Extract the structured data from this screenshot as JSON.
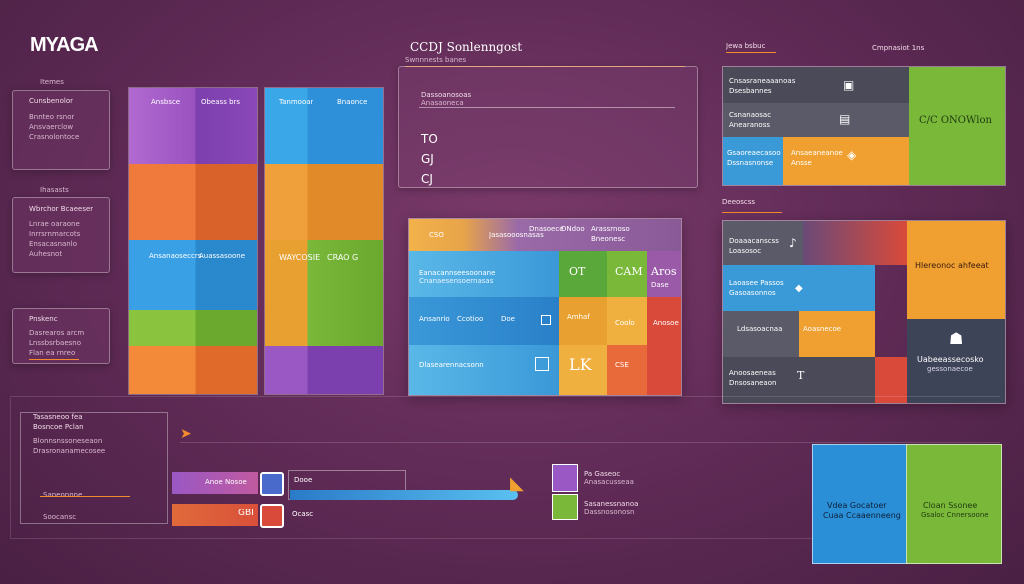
{
  "header": {
    "logo": "MYAGA",
    "title": "CCDJ Sonlenngost",
    "subtitle": "Swnnnests banes",
    "right_label_1": "Jewa bsbuc",
    "right_label_2": "Cmpnasiot 1ns"
  },
  "left_sidebar": {
    "label_top": "Itemes",
    "card1": {
      "title": "Cunsbenolor",
      "lines": [
        "Bnnteo rsnor",
        "Ansvaerclow",
        "Crasnolontoce"
      ]
    },
    "label_mid": "Ihasasts",
    "card2": {
      "title": "Wbrchor Bcaeeser",
      "lines": [
        "Lnrae oaraone",
        "Inrrsrnmarcots",
        "Ensacasnanlo",
        "Auhesnot"
      ]
    },
    "card3": {
      "title": "Pnskenc",
      "lines": [
        "Dasrearos arcm",
        "Lnssbsrbaesno",
        "Flan ea rnreo"
      ]
    }
  },
  "columns": {
    "col1": {
      "h1": "Ansbsce",
      "h2": "Obeass brs",
      "mid1": "Ansanaoseccrs",
      "mid2": "Auassasoone"
    },
    "col2": {
      "h1": "Tanmooar",
      "h2": "Bnaonce",
      "mid1": "WAYCOSIE",
      "mid2": "CRAO G"
    }
  },
  "center_top": {
    "line1": "Dassoanosoas",
    "line2": "Anasaoneca",
    "icon_glyphs": [
      "TO",
      "GJ",
      "CJ"
    ]
  },
  "grid": {
    "header": {
      "c1": "CSO",
      "c2": "Jasasooosnasas",
      "c3": "Dnasoece",
      "c4": "DNdoo",
      "c5": "Arassrnoso",
      "c6": "Bneonesc"
    },
    "row1": {
      "text": "Eanacannseesoonane",
      "sub": "Cnanaesensoernasas",
      "c1": "OT",
      "c2": "CAM",
      "c3": "Aros",
      "c4": "Dase"
    },
    "row2": {
      "text": "Ansanrio",
      "c1": "Ccotioo",
      "c2": "Doe",
      "c3": "Amhaf",
      "c4": "Coolo",
      "c5": "Anosoe"
    },
    "row3": {
      "text": "Dlasearennacsonn",
      "c1": "LK",
      "c2": "CSE"
    }
  },
  "right_top": {
    "rows": [
      {
        "a": "Cnsasraneaaanoas",
        "b": "Dsesbannes"
      },
      {
        "a": "Csnanaosac",
        "b": "Anearanoss"
      },
      {
        "a": "Gsaoreaecasoo",
        "b": "Dssnasnonse",
        "c": "Ansaeaneanoe",
        "d": "Ansse"
      }
    ],
    "big": "C/C ONOWlon"
  },
  "right_mid": {
    "label": "Deeoscss",
    "rows": [
      {
        "a": "Doaaacanscss",
        "b": "Loasosoc"
      },
      {
        "a": "Laoasee Passos",
        "b": "Gasoasonnos"
      },
      {
        "a": "Ldsasoacnaa",
        "b": "Aoasnecoe"
      },
      {
        "a": "Anoosaeneas",
        "b": "Dnsosaneaon",
        "c": "T"
      }
    ],
    "orange_title": "Hlereonoc ahfeeat",
    "dark_title": "Uabeeassecosko",
    "dark_sub": "gessonaecoe"
  },
  "bottom": {
    "left_lines": [
      "Tasasneoo fea",
      "Bosncoe Pclan",
      "Blonnsnssoneseaon",
      "Drasronanamecosee"
    ],
    "left_small": [
      "Saneonnne",
      "Soocansc"
    ],
    "bar1": {
      "label": "Anoe Nosoe",
      "right": "Dooe"
    },
    "bar2": {
      "label": "GBI",
      "right": "Ocasc"
    },
    "mid_lines": [
      "Pa Gaseoc",
      "Anasacusseaa",
      "Sasanessnanoa",
      "Dassnosonosn"
    ],
    "blue": {
      "t1": "Vdea Gocatoer",
      "t2": "Cuaa Ccaaenneeng"
    },
    "green": {
      "t1": "Cloan Ssonee",
      "t2": "Gsaloc Cnnersoone"
    }
  },
  "colors": {
    "orange": "#f28a2e",
    "blue": "#2a8fd6",
    "green": "#7cb83a",
    "purple": "#9b5fc4",
    "red": "#d94a3a"
  }
}
